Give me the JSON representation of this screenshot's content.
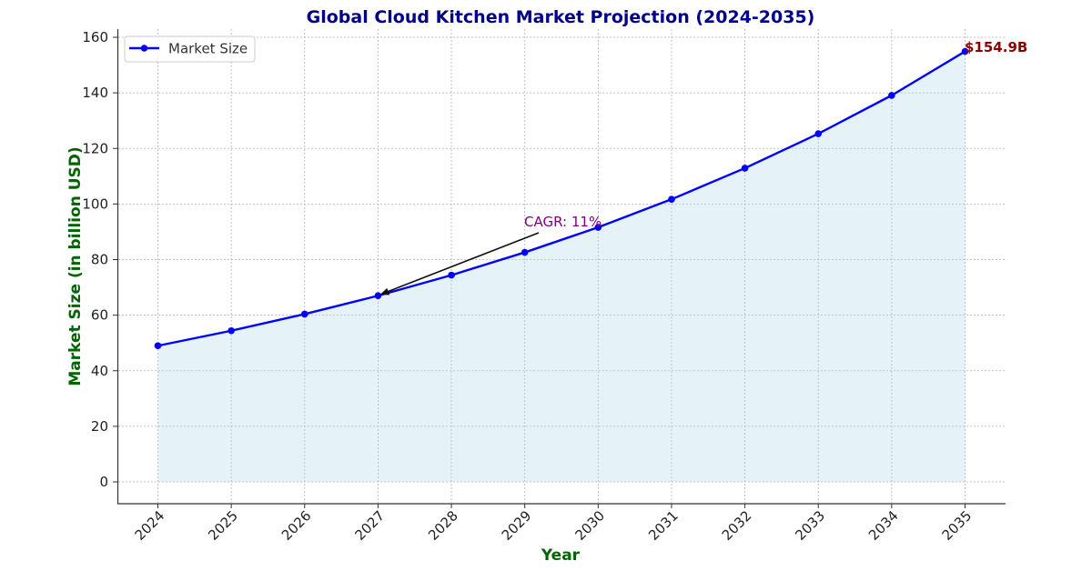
{
  "chart_data": {
    "type": "line",
    "title": "Global Cloud Kitchen Market Projection (2024-2035)",
    "xlabel": "Year",
    "ylabel": "Market Size (in billion USD)",
    "categories": [
      "2024",
      "2025",
      "2026",
      "2027",
      "2028",
      "2029",
      "2030",
      "2031",
      "2032",
      "2033",
      "2034",
      "2035"
    ],
    "series": [
      {
        "name": "Market Size",
        "color": "#0000ff",
        "fill_color": "#add8e6",
        "values": [
          49.0,
          54.4,
          60.4,
          67.0,
          74.4,
          82.6,
          91.6,
          101.7,
          112.9,
          125.3,
          139.1,
          154.9
        ]
      }
    ],
    "ylim": [
      -8,
      163
    ],
    "yticks": [
      0,
      20,
      40,
      60,
      80,
      100,
      120,
      140,
      160
    ],
    "grid": true,
    "legend_position": "upper left",
    "annotations": [
      {
        "text": "CAGR: 11%",
        "arrow_to": "2027",
        "color": "#800080"
      },
      {
        "text": "$154.9B",
        "at": "2035",
        "color": "#8b0000"
      }
    ]
  },
  "legend": {
    "label": "Market Size"
  },
  "annotations": {
    "cagr": "CAGR: 11%",
    "end_value": "$154.9B"
  }
}
